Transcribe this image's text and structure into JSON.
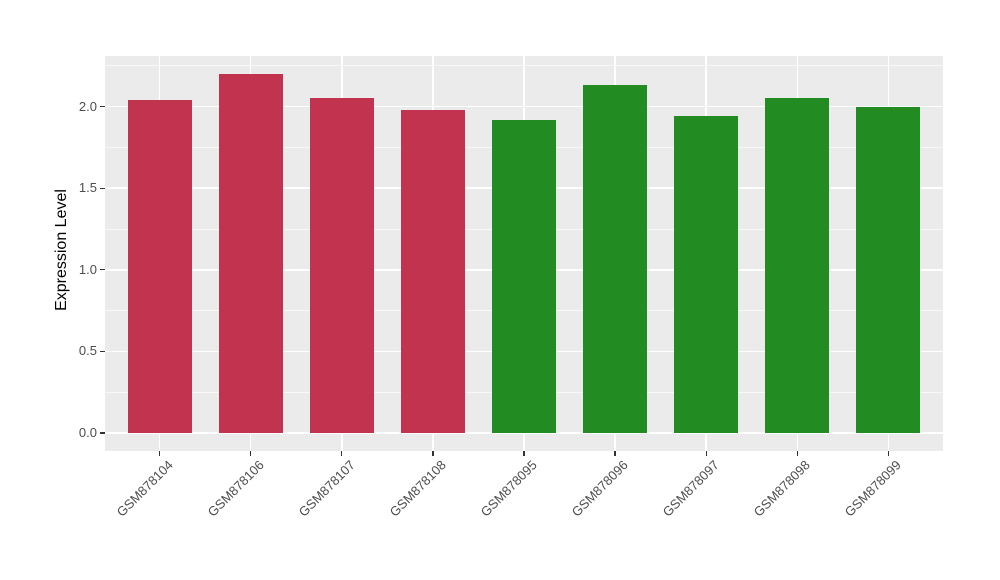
{
  "figure": {
    "background": "#FFFFFF",
    "panel_background": "#EBEBEB",
    "grid_color": "#FFFFFF",
    "tick_color": "#333333",
    "tick_label_color": "#4D4D4D",
    "axis_title_color": "#000000"
  },
  "chart_data": {
    "type": "bar",
    "title": "",
    "xlabel": "",
    "ylabel": "Expression Level",
    "categories": [
      "GSM878104",
      "GSM878106",
      "GSM878107",
      "GSM878108",
      "GSM878095",
      "GSM878096",
      "GSM878097",
      "GSM878098",
      "GSM878099"
    ],
    "values": [
      2.04,
      2.2,
      2.05,
      1.98,
      1.92,
      2.13,
      1.94,
      2.05,
      2.0
    ],
    "bar_colors": [
      "#C23350",
      "#C23350",
      "#C23350",
      "#C23350",
      "#228B22",
      "#228B22",
      "#228B22",
      "#228B22",
      "#228B22"
    ],
    "ylim": [
      -0.11,
      2.31
    ],
    "yticks": [
      0.0,
      0.5,
      1.0,
      1.5,
      2.0
    ],
    "ytick_labels": [
      "0.0",
      "0.5",
      "1.0",
      "1.5",
      "2.0"
    ],
    "yticks_minor": [
      0.25,
      0.75,
      1.25,
      1.75,
      2.25
    ],
    "bar_width_fraction": 0.7,
    "grid": true,
    "legend_position": "none",
    "x_label_angle_deg": -45
  }
}
